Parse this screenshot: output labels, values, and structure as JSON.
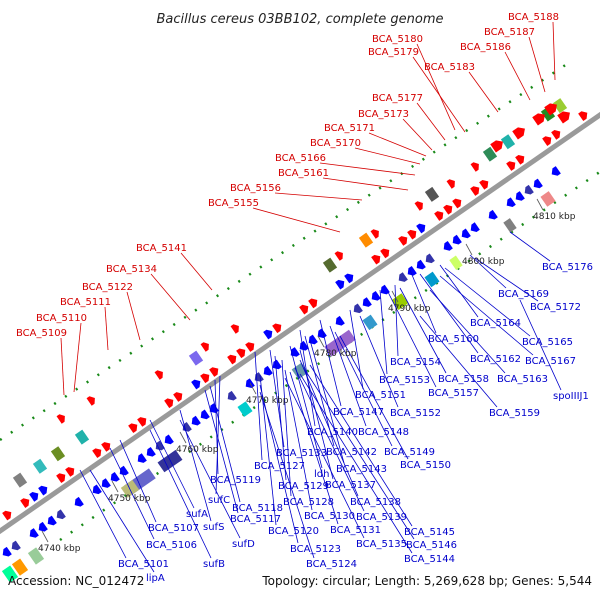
{
  "title": "Bacillus cereus 03BB102, complete genome",
  "accession": "Accession: NC_012472",
  "topology": "Topology: circular; Length: 5,269,628 bp; Genes: 5,544",
  "colors": {
    "forward_label": "#d40000",
    "reverse_label": "#0000cc",
    "backbone": "#9a9a9a"
  },
  "kbp_ticks": [
    "4740 kbp",
    "4750 kbp",
    "4760 kbp",
    "4770 kbp",
    "4780 kbp",
    "4790 kbp",
    "4800 kbp",
    "4810 kbp"
  ],
  "forward_labels": [
    "BCA_5188",
    "BCA_5187",
    "BCA_5186",
    "BCA_5180",
    "BCA_5179",
    "BCA_5183",
    "BCA_5177",
    "BCA_5173",
    "BCA_5171",
    "BCA_5170",
    "BCA_5166",
    "BCA_5161",
    "BCA_5156",
    "BCA_5155",
    "BCA_5141",
    "BCA_5134",
    "BCA_5122",
    "BCA_5111",
    "BCA_5110",
    "BCA_5109"
  ],
  "reverse_labels": [
    "BCA_5176",
    "BCA_5169",
    "BCA_5172",
    "BCA_5164",
    "BCA_5165",
    "BCA_5160",
    "BCA_5162",
    "BCA_5167",
    "BCA_5154",
    "BCA_5158",
    "BCA_5163",
    "BCA_5153",
    "BCA_5157",
    "spoIIIJ1",
    "BCA_5151",
    "BCA_5147",
    "BCA_5152",
    "BCA_5159",
    "BCA_5140",
    "BCA_5148",
    "BCA_5142",
    "BCA_5149",
    "BCA_5143",
    "BCA_5150",
    "BCA_5133",
    "BCA_5127",
    "ldh",
    "BCA_5137",
    "BCA_5119",
    "BCA_5129",
    "sufC",
    "BCA_5128",
    "BCA_5138",
    "BCA_5118",
    "BCA_5117",
    "BCA_5130",
    "BCA_5139",
    "sufA",
    "sufS",
    "BCA_5120",
    "BCA_5131",
    "BCA_5145",
    "BCA_5107",
    "sufD",
    "BCA_5135",
    "BCA_5146",
    "BCA_5106",
    "BCA_5123",
    "BCA_5144",
    "BCA_5124",
    "BCA_5101",
    "sufB",
    "lipA"
  ]
}
